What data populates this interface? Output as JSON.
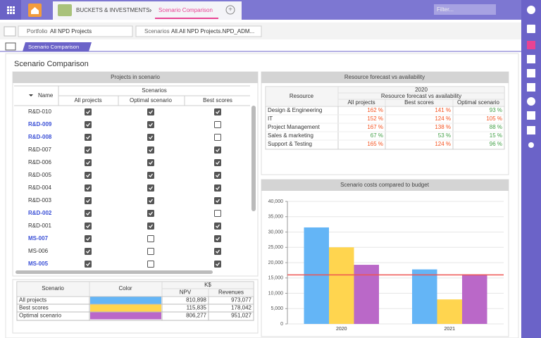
{
  "header": {
    "tabs": [
      "BUCKETS & INVESTMENTS",
      "Scenario Comparison"
    ],
    "filter_placeholder": "Filter..."
  },
  "toolbar": {
    "portfolio_label": "Portfolio",
    "portfolio_value": "All NPD Projects",
    "scenarios_label": "Scenarios",
    "scenarios_value": "All.All NPD Projects.NPD_ADM..."
  },
  "view_tab": "Scenario Comparison",
  "page_title": "Scenario Comparison",
  "projects_panel": {
    "title": "Projects in scenario",
    "name_header": "Name",
    "group_header": "Scenarios",
    "columns": [
      "All projects",
      "Optimal scenario",
      "Best scores"
    ],
    "rows": [
      {
        "name": "R&D-010",
        "highlight": false,
        "checks": [
          true,
          true,
          true
        ]
      },
      {
        "name": "R&D-009",
        "highlight": true,
        "checks": [
          true,
          true,
          false
        ]
      },
      {
        "name": "R&D-008",
        "highlight": true,
        "checks": [
          true,
          true,
          false
        ]
      },
      {
        "name": "R&D-007",
        "highlight": false,
        "checks": [
          true,
          true,
          true
        ]
      },
      {
        "name": "R&D-006",
        "highlight": false,
        "checks": [
          true,
          true,
          true
        ]
      },
      {
        "name": "R&D-005",
        "highlight": false,
        "checks": [
          true,
          true,
          true
        ]
      },
      {
        "name": "R&D-004",
        "highlight": false,
        "checks": [
          true,
          true,
          true
        ]
      },
      {
        "name": "R&D-003",
        "highlight": false,
        "checks": [
          true,
          true,
          true
        ]
      },
      {
        "name": "R&D-002",
        "highlight": true,
        "checks": [
          true,
          true,
          false
        ]
      },
      {
        "name": "R&D-001",
        "highlight": false,
        "checks": [
          true,
          true,
          true
        ]
      },
      {
        "name": "MS-007",
        "highlight": true,
        "checks": [
          true,
          false,
          true
        ]
      },
      {
        "name": "MS-006",
        "highlight": false,
        "checks": [
          true,
          false,
          true
        ]
      },
      {
        "name": "MS-005",
        "highlight": true,
        "checks": [
          true,
          false,
          true
        ]
      }
    ]
  },
  "legend_panel": {
    "scenario_header": "Scenario",
    "color_header": "Color",
    "unit_header": "K$",
    "columns": [
      "NPV",
      "Revenues"
    ],
    "rows": [
      [
        "810,898",
        "973,077"
      ],
      [
        "115,835",
        "178,042"
      ],
      [
        "806,277",
        "951,027"
      ]
    ]
  },
  "resource_panel": {
    "title": "Resource forecast vs availability",
    "resource_header": "Resource",
    "year": "2020",
    "group_header": "Resource forecast vs availability",
    "columns": [
      "All projects",
      "Best scores",
      "Optimal scenario"
    ],
    "rows": [
      {
        "resource": "Design & Engineering",
        "values": [
          "162 %",
          "141 %",
          "93 %"
        ]
      },
      {
        "resource": "IT",
        "values": [
          "152 %",
          "124 %",
          "105 %"
        ]
      },
      {
        "resource": "Project Management",
        "values": [
          "167 %",
          "138 %",
          "88 %"
        ]
      },
      {
        "resource": "Sales & marketing",
        "values": [
          "67 %",
          "53 %",
          "15 %"
        ]
      },
      {
        "resource": "Support & Testing",
        "values": [
          "165 %",
          "124 %",
          "96 %"
        ]
      }
    ]
  },
  "chart_data": {
    "type": "bar",
    "title": "Scenario costs compared to budget",
    "categories": [
      "2020",
      "2021"
    ],
    "series": [
      {
        "name": "All projects",
        "color": "#64b5f6",
        "values": [
          31500,
          17800
        ]
      },
      {
        "name": "Best scores",
        "color": "#ffd54f",
        "values": [
          25000,
          8000
        ]
      },
      {
        "name": "Optimal scenario",
        "color": "#ba68c8",
        "values": [
          19300,
          16200
        ]
      }
    ],
    "budget": 16000,
    "budget_color": "#ef5350",
    "ylim": [
      0,
      40000
    ],
    "yticks": [
      0,
      {
        "value": 5000,
        "label": "5,000"
      },
      {
        "value": 10000,
        "label": "10,000"
      },
      {
        "value": 15000,
        "label": "15,000"
      },
      {
        "value": 20000,
        "label": "20,000"
      },
      {
        "value": 25000,
        "label": "25,000"
      },
      {
        "value": 30000,
        "label": "30,000"
      },
      {
        "value": 35000,
        "label": "35,000"
      },
      {
        "value": 40000,
        "label": "40,000"
      }
    ],
    "grid": true
  }
}
